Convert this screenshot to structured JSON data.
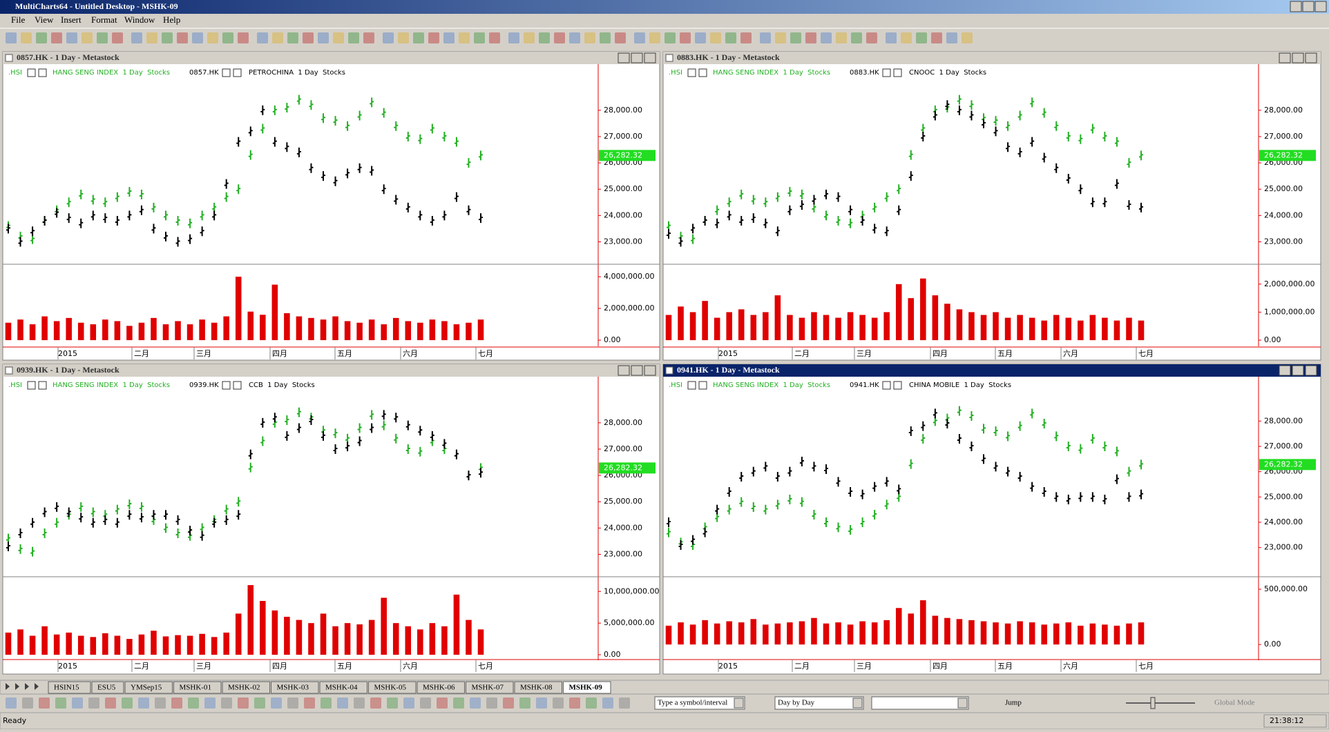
{
  "window": {
    "title": "MultiCharts64 - Untitled Desktop - MSHK-09"
  },
  "menu": [
    "File",
    "View",
    "Insert",
    "Format",
    "Window",
    "Help"
  ],
  "hsi": {
    "symbol": ".HSI",
    "name": "HANG SENG INDEX  1 Day  Stocks",
    "color": "#22b022",
    "values": [
      23600,
      23200,
      23100,
      23800,
      24200,
      24500,
      24800,
      24600,
      24500,
      24700,
      24900,
      24800,
      24300,
      24000,
      23800,
      23700,
      24000,
      24300,
      24700,
      25000,
      26300,
      27300,
      28000,
      28100,
      28400,
      28200,
      27700,
      27600,
      27400,
      27800,
      28300,
      27900,
      27400,
      27000,
      26900,
      27300,
      27000,
      26800,
      26000,
      26282.32
    ],
    "last": {
      "value": 26282.32,
      "label": "26,282.32"
    }
  },
  "x_labels": [
    "2015",
    "二月",
    "三月",
    "四月",
    "五月",
    "六月",
    "七月"
  ],
  "panes": [
    {
      "title": "0857.HK - 1 Day - Metastock",
      "symbol": "0857.HK",
      "name": "PETROCHINA  1 Day  Stocks",
      "active": false,
      "price": {
        "ylim": [
          22200,
          29700
        ],
        "yticks": [
          {
            "value": 23000,
            "label": "23,000.00"
          },
          {
            "value": 24000,
            "label": "24,000.00"
          },
          {
            "value": 25000,
            "label": "25,000.00"
          },
          {
            "value": 26000,
            "label": "26,000.00"
          },
          {
            "value": 27000,
            "label": "27,000.00"
          },
          {
            "value": 28000,
            "label": "28,000.00"
          }
        ],
        "color": "#000000",
        "values": [
          23500,
          23000,
          23400,
          23800,
          24100,
          23900,
          23700,
          24000,
          23900,
          23800,
          24000,
          24200,
          23500,
          23200,
          23000,
          23100,
          23400,
          24000,
          25200,
          26800,
          27200,
          28000,
          26800,
          26600,
          26400,
          25800,
          25500,
          25300,
          25600,
          25800,
          25700,
          25000,
          24600,
          24300,
          24000,
          23800,
          24000,
          24700,
          24200,
          23900
        ]
      },
      "volume": {
        "ylim": [
          -390000,
          4700000
        ],
        "yticks": [
          {
            "value": 0,
            "label": "0.00"
          },
          {
            "value": 2000000,
            "label": "2,000,000.00"
          },
          {
            "value": 4000000,
            "label": "4,000,000.00"
          }
        ],
        "color": "#e00000",
        "values": [
          1100000,
          1300000,
          1000000,
          1500000,
          1200000,
          1400000,
          1100000,
          1000000,
          1300000,
          1200000,
          900000,
          1100000,
          1400000,
          1000000,
          1200000,
          1000000,
          1300000,
          1100000,
          1500000,
          4000000,
          1800000,
          1600000,
          3500000,
          1700000,
          1500000,
          1400000,
          1300000,
          1500000,
          1200000,
          1100000,
          1300000,
          1000000,
          1400000,
          1200000,
          1100000,
          1300000,
          1200000,
          1000000,
          1100000,
          1300000
        ]
      }
    },
    {
      "title": "0883.HK - 1 Day - Metastock",
      "symbol": "0883.HK",
      "name": "CNOOC  1 Day  Stocks",
      "active": false,
      "price": {
        "ylim": [
          22200,
          29700
        ],
        "yticks": [
          {
            "value": 23000,
            "label": "23,000.00"
          },
          {
            "value": 24000,
            "label": "24,000.00"
          },
          {
            "value": 25000,
            "label": "25,000.00"
          },
          {
            "value": 26000,
            "label": "26,000.00"
          },
          {
            "value": 27000,
            "label": "27,000.00"
          },
          {
            "value": 28000,
            "label": "28,000.00"
          }
        ],
        "color": "#000000",
        "values": [
          23300,
          23000,
          23500,
          23800,
          23700,
          24000,
          23800,
          23900,
          23700,
          23400,
          24200,
          24400,
          24600,
          24800,
          24700,
          24200,
          23800,
          23500,
          23400,
          24200,
          25500,
          27000,
          27800,
          28200,
          28000,
          27800,
          27500,
          27200,
          26600,
          26400,
          26800,
          26200,
          25800,
          25400,
          25000,
          24500,
          24500,
          25200,
          24400,
          24300
        ]
      },
      "volume": {
        "ylim": [
          -220000,
          2660000
        ],
        "yticks": [
          {
            "value": 0,
            "label": "0.00"
          },
          {
            "value": 1000000,
            "label": "1,000,000.00"
          },
          {
            "value": 2000000,
            "label": "2,000,000.00"
          }
        ],
        "color": "#e00000",
        "values": [
          900000,
          1200000,
          1000000,
          1400000,
          800000,
          1000000,
          1100000,
          900000,
          1000000,
          1600000,
          900000,
          800000,
          1000000,
          900000,
          800000,
          1000000,
          900000,
          800000,
          1000000,
          2000000,
          1500000,
          2200000,
          1600000,
          1300000,
          1100000,
          1000000,
          900000,
          1000000,
          800000,
          900000,
          800000,
          700000,
          900000,
          800000,
          700000,
          900000,
          800000,
          700000,
          800000,
          700000
        ]
      }
    },
    {
      "title": "0939.HK - 1 Day - Metastock",
      "symbol": "0939.HK",
      "name": "CCB  1 Day  Stocks",
      "active": false,
      "price": {
        "ylim": [
          22200,
          29700
        ],
        "yticks": [
          {
            "value": 23000,
            "label": "23,000.00"
          },
          {
            "value": 24000,
            "label": "24,000.00"
          },
          {
            "value": 25000,
            "label": "25,000.00"
          },
          {
            "value": 26000,
            "label": "26,000.00"
          },
          {
            "value": 27000,
            "label": "27,000.00"
          },
          {
            "value": 28000,
            "label": "28,000.00"
          }
        ],
        "color": "#000000",
        "values": [
          23300,
          23800,
          24200,
          24600,
          24800,
          24600,
          24400,
          24200,
          24300,
          24200,
          24500,
          24400,
          24500,
          24500,
          24300,
          23900,
          23700,
          24200,
          24300,
          24500,
          26800,
          28000,
          28200,
          27500,
          27800,
          28100,
          27500,
          27000,
          27100,
          27300,
          27800,
          28300,
          28200,
          27900,
          27700,
          27500,
          27200,
          26800,
          26000,
          26100
        ]
      },
      "volume": {
        "ylim": [
          -650000,
          12100000
        ],
        "yticks": [
          {
            "value": 0,
            "label": "0.00"
          },
          {
            "value": 5000000,
            "label": "5,000,000.00"
          },
          {
            "value": 10000000,
            "label": "10,000,000.00"
          }
        ],
        "color": "#e00000",
        "values": [
          3500000,
          4000000,
          3000000,
          4500000,
          3200000,
          3500000,
          3000000,
          2800000,
          3400000,
          3000000,
          2500000,
          3200000,
          3800000,
          2900000,
          3100000,
          3000000,
          3300000,
          2800000,
          3500000,
          6500000,
          11000000,
          8500000,
          7000000,
          6000000,
          5500000,
          5000000,
          6500000,
          4500000,
          5000000,
          4800000,
          5500000,
          9000000,
          5000000,
          4500000,
          4000000,
          5000000,
          4500000,
          9500000,
          5500000,
          4000000
        ]
      }
    },
    {
      "title": "0941.HK - 1 Day - Metastock",
      "symbol": "0941.HK",
      "name": "CHINA MOBILE  1 Day  Stocks",
      "active": true,
      "price": {
        "ylim": [
          21900,
          29700
        ],
        "yticks": [
          {
            "value": 23000,
            "label": "23,000.00"
          },
          {
            "value": 24000,
            "label": "24,000.00"
          },
          {
            "value": 25000,
            "label": "25,000.00"
          },
          {
            "value": 26000,
            "label": "26,000.00"
          },
          {
            "value": 27000,
            "label": "27,000.00"
          },
          {
            "value": 28000,
            "label": "28,000.00"
          }
        ],
        "color": "#000000",
        "values": [
          24000,
          23100,
          23300,
          23600,
          24500,
          25200,
          25800,
          26000,
          26200,
          25800,
          26000,
          26400,
          26200,
          26100,
          25600,
          25200,
          25100,
          25400,
          25600,
          25300,
          27600,
          27800,
          28300,
          27900,
          27300,
          27000,
          26500,
          26200,
          26000,
          25800,
          25400,
          25200,
          25000,
          24900,
          25000,
          25000,
          24900,
          25700,
          25000,
          25100
        ]
      },
      "volume": {
        "ylim": [
          -130000,
          600000
        ],
        "yticks": [
          {
            "value": 0,
            "label": "0.00"
          },
          {
            "value": 500000,
            "label": "500,000.00"
          }
        ],
        "color": "#e00000",
        "values": [
          170000,
          200000,
          180000,
          220000,
          190000,
          210000,
          200000,
          230000,
          180000,
          190000,
          200000,
          210000,
          240000,
          190000,
          200000,
          180000,
          210000,
          200000,
          220000,
          330000,
          280000,
          400000,
          260000,
          240000,
          230000,
          220000,
          210000,
          200000,
          190000,
          210000,
          200000,
          180000,
          190000,
          200000,
          170000,
          190000,
          180000,
          170000,
          190000,
          200000
        ]
      }
    }
  ],
  "tabs": [
    "HSIN15",
    "ESU5",
    "YMSep15",
    "MSHK-01",
    "MSHK-02",
    "MSHK-03",
    "MSHK-04",
    "MSHK-05",
    "MSHK-06",
    "MSHK-07",
    "MSHK-08",
    "MSHK-09"
  ],
  "active_tab": 11,
  "bottom_toolbar": {
    "symbol_box": "Type a symbol/interval",
    "mode": "Day by Day",
    "jump": "Jump",
    "global": "Global Mode"
  },
  "status": {
    "left": "Ready",
    "time": "21:38:12"
  }
}
